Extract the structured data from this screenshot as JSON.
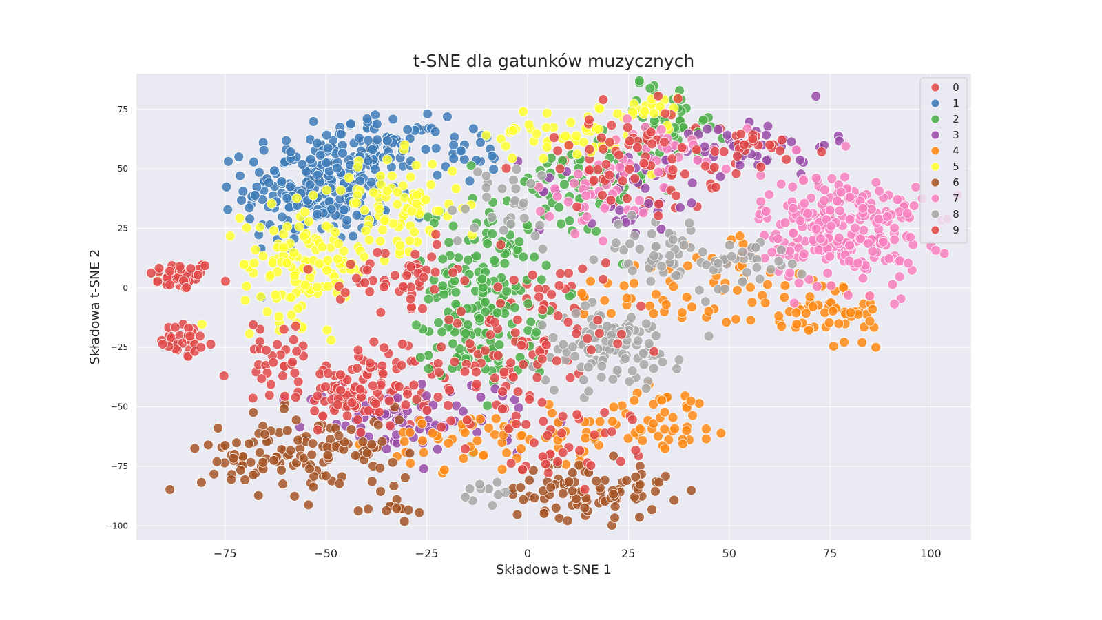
{
  "chart_data": {
    "type": "scatter",
    "title": "t-SNE dla gatunków muzycznych",
    "xlabel": "Składowa t-SNE 1",
    "ylabel": "Składowa t-SNE 2",
    "xlim": [
      -97,
      110
    ],
    "ylim": [
      -106,
      90
    ],
    "xticks": [
      -75,
      -50,
      -25,
      0,
      25,
      50,
      75,
      100
    ],
    "xtick_labels": [
      "−75",
      "−50",
      "−25",
      "0",
      "25",
      "50",
      "75",
      "100"
    ],
    "yticks": [
      75,
      50,
      25,
      0,
      -25,
      -50,
      -75,
      -100
    ],
    "ytick_labels": [
      "75",
      "50",
      "25",
      "0",
      "−25",
      "−50",
      "−75",
      "−100"
    ],
    "grid": true,
    "legend_position": "top-right",
    "series": [
      {
        "name": "0",
        "color": "#e24a4a",
        "clusters": [
          {
            "cx": -86,
            "cy": 5,
            "sx": 4,
            "sy": 3,
            "n": 45
          },
          {
            "cx": -85,
            "cy": -22,
            "sx": 3,
            "sy": 4,
            "n": 30
          },
          {
            "cx": -35,
            "cy": -40,
            "sx": 8,
            "sy": 10,
            "n": 40
          },
          {
            "cx": 5,
            "cy": -10,
            "sx": 10,
            "sy": 15,
            "n": 30
          },
          {
            "cx": 35,
            "cy": 50,
            "sx": 12,
            "sy": 12,
            "n": 30
          }
        ]
      },
      {
        "name": "1",
        "color": "#3f7cb9",
        "clusters": [
          {
            "cx": -52,
            "cy": 42,
            "sx": 9,
            "sy": 11,
            "n": 240
          },
          {
            "cx": -35,
            "cy": 60,
            "sx": 7,
            "sy": 6,
            "n": 70
          },
          {
            "cx": -13,
            "cy": 55,
            "sx": 5,
            "sy": 6,
            "n": 20
          }
        ]
      },
      {
        "name": "2",
        "color": "#4caf4a",
        "clusters": [
          {
            "cx": -10,
            "cy": 0,
            "sx": 7,
            "sy": 18,
            "n": 160
          },
          {
            "cx": 10,
            "cy": 40,
            "sx": 10,
            "sy": 10,
            "n": 60
          },
          {
            "cx": 35,
            "cy": 70,
            "sx": 7,
            "sy": 8,
            "n": 50
          },
          {
            "cx": -15,
            "cy": -30,
            "sx": 8,
            "sy": 8,
            "n": 30
          }
        ]
      },
      {
        "name": "3",
        "color": "#9a4ea9",
        "clusters": [
          {
            "cx": -35,
            "cy": -55,
            "sx": 10,
            "sy": 8,
            "n": 60
          },
          {
            "cx": 55,
            "cy": 60,
            "sx": 10,
            "sy": 6,
            "n": 50
          },
          {
            "cx": 25,
            "cy": 40,
            "sx": 12,
            "sy": 10,
            "n": 40
          },
          {
            "cx": -10,
            "cy": -55,
            "sx": 8,
            "sy": 8,
            "n": 20
          }
        ]
      },
      {
        "name": "4",
        "color": "#ff8a14",
        "clusters": [
          {
            "cx": 72,
            "cy": -10,
            "sx": 10,
            "sy": 8,
            "n": 70
          },
          {
            "cx": 35,
            "cy": -55,
            "sx": 8,
            "sy": 7,
            "n": 45
          },
          {
            "cx": -15,
            "cy": -65,
            "sx": 10,
            "sy": 6,
            "n": 40
          },
          {
            "cx": 30,
            "cy": 0,
            "sx": 10,
            "sy": 8,
            "n": 30
          },
          {
            "cx": 10,
            "cy": -62,
            "sx": 8,
            "sy": 6,
            "n": 30
          },
          {
            "cx": 50,
            "cy": 10,
            "sx": 6,
            "sy": 10,
            "n": 20
          }
        ]
      },
      {
        "name": "5",
        "color": "#ffff33",
        "clusters": [
          {
            "cx": -55,
            "cy": 10,
            "sx": 8,
            "sy": 12,
            "n": 130
          },
          {
            "cx": -32,
            "cy": 35,
            "sx": 8,
            "sy": 10,
            "n": 80
          },
          {
            "cx": 10,
            "cy": 65,
            "sx": 10,
            "sy": 6,
            "n": 50
          },
          {
            "cx": 30,
            "cy": 75,
            "sx": 5,
            "sy": 3,
            "n": 20
          }
        ]
      },
      {
        "name": "6",
        "color": "#a65628",
        "clusters": [
          {
            "cx": -65,
            "cy": -70,
            "sx": 8,
            "sy": 8,
            "n": 70
          },
          {
            "cx": -45,
            "cy": -70,
            "sx": 8,
            "sy": 8,
            "n": 60
          },
          {
            "cx": 15,
            "cy": -85,
            "sx": 10,
            "sy": 6,
            "n": 90
          },
          {
            "cx": -33,
            "cy": -93,
            "sx": 3,
            "sy": 3,
            "n": 15
          }
        ]
      },
      {
        "name": "7",
        "color": "#f781bf",
        "clusters": [
          {
            "cx": 78,
            "cy": 25,
            "sx": 10,
            "sy": 12,
            "n": 260
          },
          {
            "cx": 18,
            "cy": 40,
            "sx": 8,
            "sy": 7,
            "n": 40
          },
          {
            "cx": 35,
            "cy": 60,
            "sx": 8,
            "sy": 6,
            "n": 30
          }
        ]
      },
      {
        "name": "8",
        "color": "#a8a8a8",
        "clusters": [
          {
            "cx": 20,
            "cy": -25,
            "sx": 9,
            "sy": 8,
            "n": 110
          },
          {
            "cx": 35,
            "cy": 15,
            "sx": 8,
            "sy": 8,
            "n": 50
          },
          {
            "cx": 55,
            "cy": 10,
            "sx": 5,
            "sy": 5,
            "n": 30
          },
          {
            "cx": -5,
            "cy": 35,
            "sx": 8,
            "sy": 10,
            "n": 30
          },
          {
            "cx": -10,
            "cy": -85,
            "sx": 3,
            "sy": 4,
            "n": 10
          }
        ]
      },
      {
        "name": "9",
        "color": "#e24a4a",
        "clusters": [
          {
            "cx": -32,
            "cy": 5,
            "sx": 7,
            "sy": 6,
            "n": 50
          },
          {
            "cx": -45,
            "cy": -45,
            "sx": 10,
            "sy": 8,
            "n": 80
          },
          {
            "cx": -5,
            "cy": -30,
            "sx": 12,
            "sy": 18,
            "n": 100
          },
          {
            "cx": 25,
            "cy": 55,
            "sx": 12,
            "sy": 12,
            "n": 60
          },
          {
            "cx": 10,
            "cy": -65,
            "sx": 8,
            "sy": 8,
            "n": 30
          },
          {
            "cx": -62,
            "cy": -30,
            "sx": 6,
            "sy": 8,
            "n": 30
          },
          {
            "cx": 55,
            "cy": 60,
            "sx": 8,
            "sy": 5,
            "n": 25
          }
        ]
      }
    ]
  }
}
